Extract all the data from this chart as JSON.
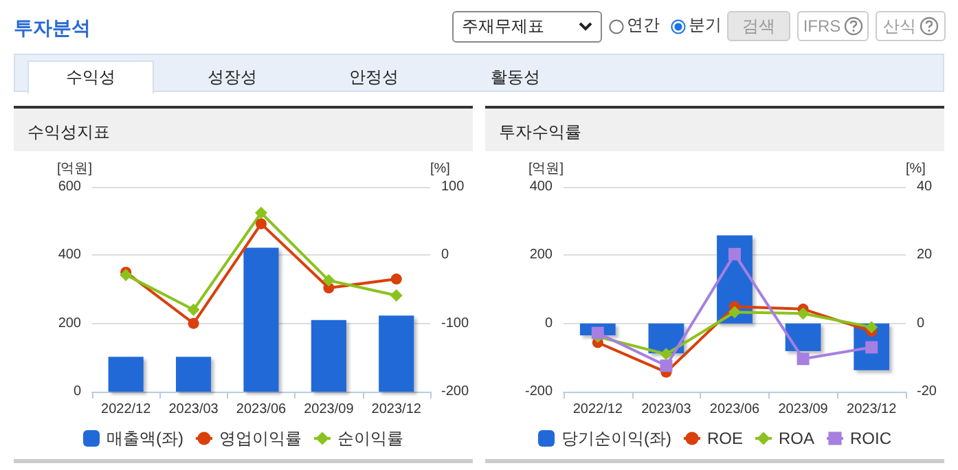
{
  "chart_data": [
    {
      "type": "other",
      "title": "투자분석",
      "annotations": [
        "주재무제표",
        "연간",
        "분기",
        "검색",
        "IFRS",
        "산식",
        "수익성",
        "성장성",
        "안정성",
        "활동성"
      ]
    },
    {
      "type": "bar",
      "title": "수익성지표",
      "categories": [
        "2022/12",
        "2023/03",
        "2023/06",
        "2023/09",
        "2023/12"
      ],
      "ylabel": "[억원]",
      "y2label": "[%]",
      "ylim": [
        0,
        600
      ],
      "yticks": [
        0,
        200,
        400,
        600
      ],
      "y2lim": [
        -200,
        100
      ],
      "y2ticks": [
        -200,
        -100,
        0,
        100
      ],
      "grid": "y",
      "legend": "bottom",
      "series": [
        {
          "name": "매출액(좌)",
          "type": "bar",
          "color": "#2169d8",
          "values": [
            102,
            102,
            422,
            210,
            223
          ]
        },
        {
          "name": "영업이익률",
          "type": "line",
          "axis": "y2",
          "marker": "circle",
          "color": "#d9400b",
          "values": [
            -25,
            -100,
            46,
            -48,
            -35
          ]
        },
        {
          "name": "순이익률",
          "type": "line",
          "axis": "y2",
          "marker": "diamond",
          "color": "#8cc21f",
          "values": [
            -29,
            -80,
            62,
            -37,
            -59
          ]
        }
      ]
    },
    {
      "type": "bar",
      "title": "투자수익률",
      "categories": [
        "2022/12",
        "2023/03",
        "2023/06",
        "2023/09",
        "2023/12"
      ],
      "ylabel": "[억원]",
      "y2label": "[%]",
      "ylim": [
        -200,
        400
      ],
      "yticks": [
        -200,
        0,
        200,
        400
      ],
      "y2lim": [
        -20,
        40
      ],
      "y2ticks": [
        -20,
        0,
        20,
        40
      ],
      "grid": "y",
      "legend": "bottom",
      "series": [
        {
          "name": "당기순이익(좌)",
          "type": "bar",
          "color": "#2169d8",
          "values": [
            -35,
            -88,
            258,
            -81,
            -137
          ]
        },
        {
          "name": "ROE",
          "type": "line",
          "axis": "y2",
          "marker": "circle",
          "color": "#d9400b",
          "values": [
            -5.6,
            -14.3,
            4.9,
            4.2,
            -2.3
          ]
        },
        {
          "name": "ROA",
          "type": "line",
          "axis": "y2",
          "marker": "diamond",
          "color": "#8cc21f",
          "values": [
            -3.9,
            -9.0,
            3.3,
            2.9,
            -1.1
          ]
        },
        {
          "name": "ROIC",
          "type": "line",
          "axis": "y2",
          "marker": "square",
          "color": "#a67fe0",
          "values": [
            -2.8,
            -12.4,
            20.3,
            -10.4,
            -7.0
          ]
        }
      ]
    }
  ]
}
